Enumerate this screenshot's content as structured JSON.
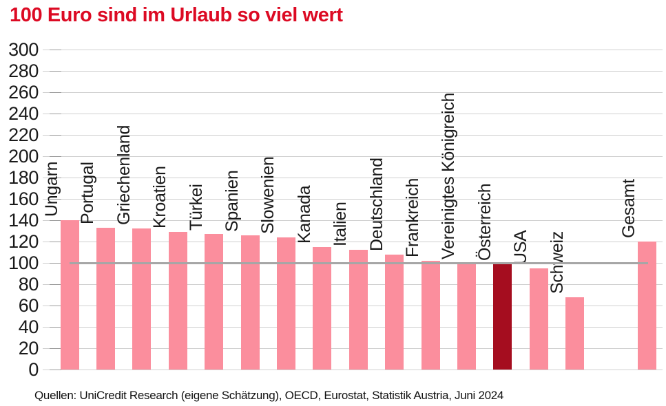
{
  "chart_data": {
    "type": "bar",
    "title": "100 Euro sind im Urlaub so viel wert",
    "categories": [
      "Ungarn",
      "Portugal",
      "Griechenland",
      "Kroatien",
      "Türkei",
      "Spanien",
      "Slowenien",
      "Kanada",
      "Italien",
      "Deutschland",
      "Frankreich",
      "Vereinigtes Königreich",
      "Österreich",
      "USA",
      "Schweiz",
      "Gesamt"
    ],
    "values": [
      140,
      133,
      132,
      129,
      127,
      126,
      124,
      115,
      112,
      108,
      102,
      100,
      99,
      95,
      68,
      120
    ],
    "highlight_category": "Österreich",
    "gap_before_category": "Gesamt",
    "reference_line_value": 100,
    "ylim": [
      0,
      300
    ],
    "ytick_step": 20,
    "yticks": [
      0,
      20,
      40,
      60,
      80,
      100,
      120,
      140,
      160,
      180,
      200,
      220,
      240,
      260,
      280,
      300
    ],
    "grid": "horizontal",
    "legend": "none",
    "label_rotation_degrees": 90,
    "colors": {
      "bar": "#fb8e9d",
      "highlight_bar": "#a50d1f",
      "title": "#dc0a23",
      "reference_line": "#a6a6a6",
      "gridline": "#cfcfcf",
      "axis_text": "#1a1a1a"
    },
    "source": "Quellen: UniCredit Research (eigene Schätzung), OECD, Eurostat, Statistik Austria,  Juni 2024"
  }
}
